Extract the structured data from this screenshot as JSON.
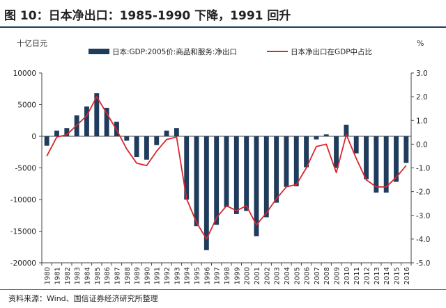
{
  "header": {
    "title": "图 10：日本净出口：1985-1990 下降，1991 回升"
  },
  "source": "资料来源：Wind、国信证券经济研究所整理",
  "colors": {
    "bar": "#1f3c5c",
    "line": "#d9262c",
    "axis": "#444444",
    "rule": "#1f3c5c"
  },
  "chart_data": {
    "type": "bar+line",
    "title": "日本净出口：1985-1990 下降，1991 回升",
    "left_axis_unit": "十亿日元",
    "right_axis_unit": "%",
    "ylim_left": [
      -20000,
      10000
    ],
    "ylim_right": [
      -5.0,
      3.0
    ],
    "left_ticks": [
      "10000",
      "5000",
      "0",
      "-5000",
      "-10000",
      "-15000",
      "-20000"
    ],
    "right_ticks": [
      "3.0",
      "2.0",
      "1.0",
      "0.0",
      "-1.0",
      "-2.0",
      "-3.0",
      "-4.0",
      "-5.0"
    ],
    "categories": [
      "1980",
      "1981",
      "1982",
      "1983",
      "1984",
      "1985",
      "1986",
      "1987",
      "1988",
      "1989",
      "1990",
      "1991",
      "1992",
      "1993",
      "1994",
      "1995",
      "1996",
      "1997",
      "1998",
      "1999",
      "2000",
      "2001",
      "2002",
      "2003",
      "2004",
      "2005",
      "2006",
      "2007",
      "2008",
      "2009",
      "2010",
      "2011",
      "2012",
      "2013",
      "2014",
      "2015",
      "2016"
    ],
    "series": [
      {
        "name": "日本:GDP:2005价:商品和服务:净出口",
        "type": "bar",
        "axis": "left",
        "values": [
          -1500,
          900,
          1300,
          3300,
          4700,
          6800,
          4500,
          2300,
          -700,
          -3300,
          -3700,
          -1400,
          900,
          1300,
          -10000,
          -14200,
          -18000,
          -14000,
          -11200,
          -12300,
          -11800,
          -15800,
          -12800,
          -10500,
          -8000,
          -7900,
          -4900,
          -500,
          300,
          -5000,
          1800,
          -2700,
          -6800,
          -8900,
          -8900,
          -7200,
          -4200
        ]
      },
      {
        "name": "日本净出口在GDP中占比",
        "type": "line",
        "axis": "right",
        "values": [
          -0.5,
          0.3,
          0.4,
          0.8,
          1.2,
          2.0,
          1.3,
          0.6,
          -0.2,
          -0.8,
          -0.9,
          -0.3,
          0.2,
          0.3,
          -2.3,
          -3.3,
          -4.0,
          -3.1,
          -2.6,
          -2.8,
          -2.6,
          -3.4,
          -2.9,
          -2.3,
          -1.8,
          -1.7,
          -1.0,
          -0.1,
          0.0,
          -1.2,
          0.4,
          -0.6,
          -1.5,
          -1.8,
          -1.8,
          -1.4,
          -0.9
        ]
      }
    ]
  }
}
